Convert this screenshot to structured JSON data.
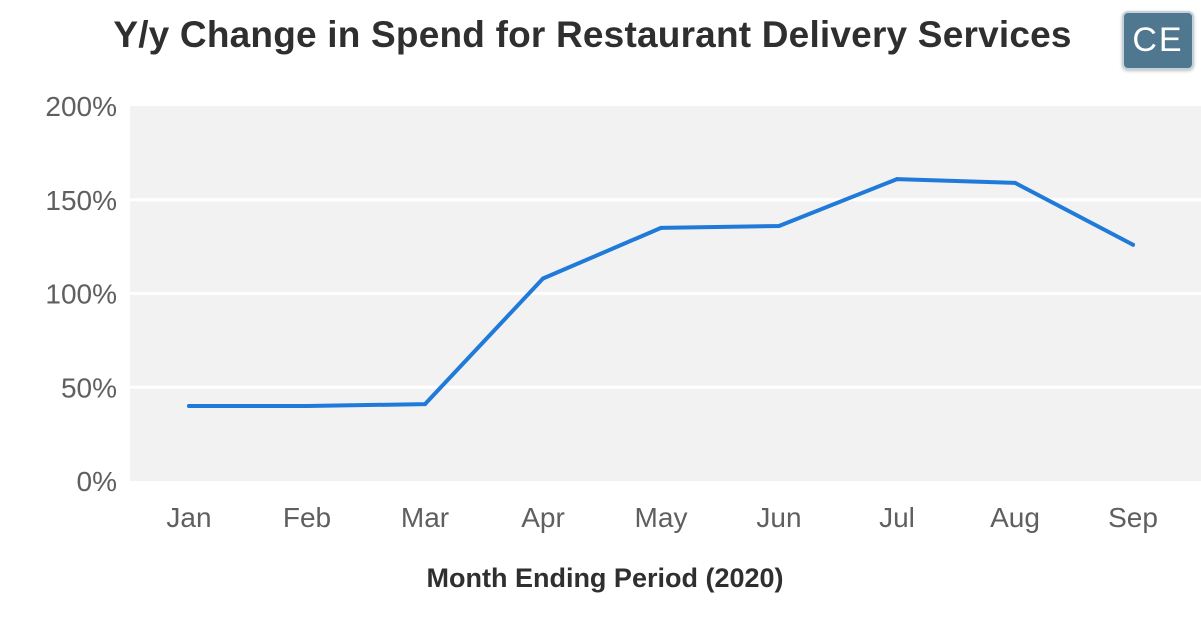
{
  "header": {
    "logo_text": "CE",
    "logo_color": "#4f7790"
  },
  "chart_data": {
    "type": "line",
    "title": "Y/y Change in Spend for Restaurant Delivery Services",
    "xlabel": "Month Ending Period (2020)",
    "ylabel": "",
    "categories": [
      "Jan",
      "Feb",
      "Mar",
      "Apr",
      "May",
      "Jun",
      "Jul",
      "Aug",
      "Sep"
    ],
    "series": [
      {
        "color": "#1f7ad9",
        "values": [
          40,
          40,
          41,
          108,
          135,
          136,
          161,
          159,
          126
        ]
      }
    ],
    "ylim": [
      0,
      200
    ],
    "yticks": [
      0,
      50,
      100,
      150,
      200
    ],
    "ytick_labels": [
      "0%",
      "50%",
      "100%",
      "150%",
      "200%"
    ],
    "grid": true,
    "plot_background": "#f2f2f2"
  }
}
